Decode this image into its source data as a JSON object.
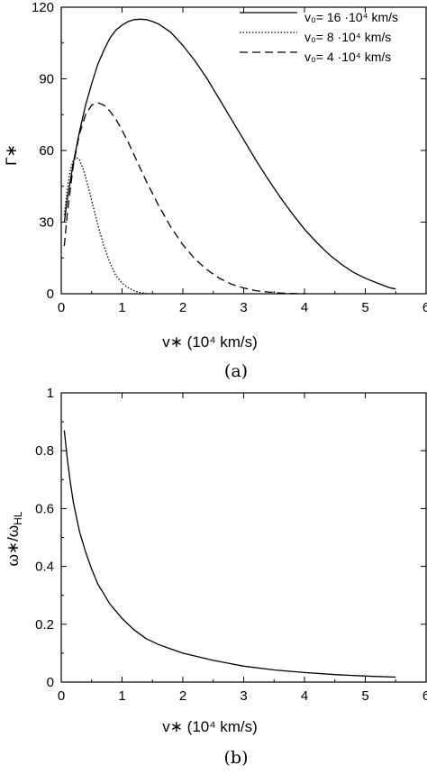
{
  "chart_data": [
    {
      "type": "line",
      "panel_caption": "(a)",
      "xlabel": "v∗  (10⁴ km/s)",
      "ylabel": "Γ∗",
      "xlim": [
        0,
        6
      ],
      "ylim": [
        0,
        120
      ],
      "xticks": [
        "0",
        "1",
        "2",
        "3",
        "4",
        "5",
        "6"
      ],
      "yticks": [
        "0",
        "30",
        "60",
        "90",
        "120"
      ],
      "legend_position": "top-right",
      "series": [
        {
          "name": "v₀= 16 ·10⁴ km/s",
          "style": "solid",
          "x": [
            0.05,
            0.1,
            0.2,
            0.3,
            0.4,
            0.5,
            0.6,
            0.7,
            0.8,
            0.9,
            1.0,
            1.1,
            1.2,
            1.3,
            1.4,
            1.5,
            1.6,
            1.8,
            2.0,
            2.2,
            2.4,
            2.6,
            2.8,
            3.0,
            3.2,
            3.4,
            3.6,
            3.8,
            4.0,
            4.2,
            4.4,
            4.6,
            4.8,
            5.0,
            5.2,
            5.4,
            5.5
          ],
          "y": [
            30,
            40,
            55,
            68,
            79,
            88,
            96,
            102,
            107,
            110.5,
            112.5,
            114,
            114.8,
            115,
            114.8,
            114,
            113,
            109.5,
            104,
            97.5,
            90,
            81.5,
            73,
            64.5,
            56,
            48,
            40.5,
            33.5,
            27,
            21.5,
            16.5,
            12.5,
            9,
            6.5,
            4.5,
            2.5,
            2
          ]
        },
        {
          "name": "v₀=  8 ·10⁴ km/s",
          "style": "dotted",
          "x": [
            0.05,
            0.1,
            0.15,
            0.2,
            0.25,
            0.3,
            0.35,
            0.4,
            0.5,
            0.6,
            0.7,
            0.8,
            0.9,
            1.0,
            1.1,
            1.2,
            1.3,
            1.4
          ],
          "y": [
            33,
            44,
            52,
            56,
            57,
            56,
            53,
            49,
            39,
            29,
            20,
            13,
            7.5,
            4.5,
            2.5,
            1.2,
            0.5,
            0.2
          ]
        },
        {
          "name": "v₀=  4 ·10⁴ km/s",
          "style": "dashed",
          "x": [
            0.05,
            0.1,
            0.2,
            0.3,
            0.4,
            0.5,
            0.6,
            0.7,
            0.8,
            0.9,
            1.0,
            1.1,
            1.2,
            1.4,
            1.6,
            1.8,
            2.0,
            2.2,
            2.4,
            2.6,
            2.8,
            3.0,
            3.2,
            3.4,
            3.6,
            3.8,
            4.0
          ],
          "y": [
            20,
            34,
            54,
            67,
            75,
            79,
            80,
            79,
            76.5,
            73,
            68.5,
            63.5,
            58,
            47,
            37,
            28,
            20.5,
            14.5,
            10,
            6.5,
            4,
            2.4,
            1.3,
            0.7,
            0.3,
            0.1,
            0
          ]
        }
      ]
    },
    {
      "type": "line",
      "panel_caption": "(b)",
      "xlabel": "v∗  (10⁴ km/s)",
      "ylabel": "ω∗/ω",
      "ylabel_sub": "HL",
      "xlim": [
        0,
        6
      ],
      "ylim": [
        0,
        1
      ],
      "xticks": [
        "0",
        "1",
        "2",
        "3",
        "4",
        "5",
        "6"
      ],
      "yticks": [
        "0",
        "0.2",
        "0.4",
        "0.6",
        "0.8",
        "1"
      ],
      "series": [
        {
          "style": "solid",
          "x": [
            0.05,
            0.1,
            0.15,
            0.2,
            0.3,
            0.4,
            0.5,
            0.6,
            0.8,
            1.0,
            1.2,
            1.4,
            1.6,
            1.8,
            2.0,
            2.5,
            3.0,
            3.5,
            4.0,
            4.5,
            5.0,
            5.5
          ],
          "y": [
            0.87,
            0.77,
            0.69,
            0.62,
            0.52,
            0.45,
            0.39,
            0.34,
            0.27,
            0.22,
            0.18,
            0.15,
            0.13,
            0.115,
            0.1,
            0.075,
            0.055,
            0.042,
            0.033,
            0.026,
            0.021,
            0.017
          ]
        }
      ]
    }
  ]
}
